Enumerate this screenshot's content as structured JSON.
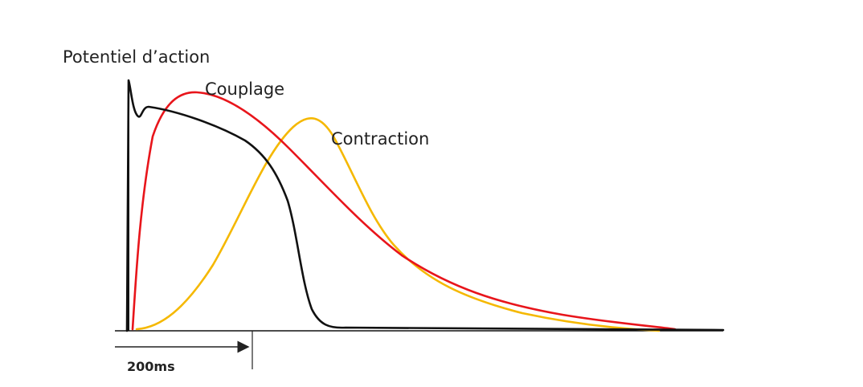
{
  "labels": {
    "y_axis": "Potentiel  d’action",
    "coupling": "Couplage",
    "contraction": "Contraction",
    "scale": "200ms"
  }
}
